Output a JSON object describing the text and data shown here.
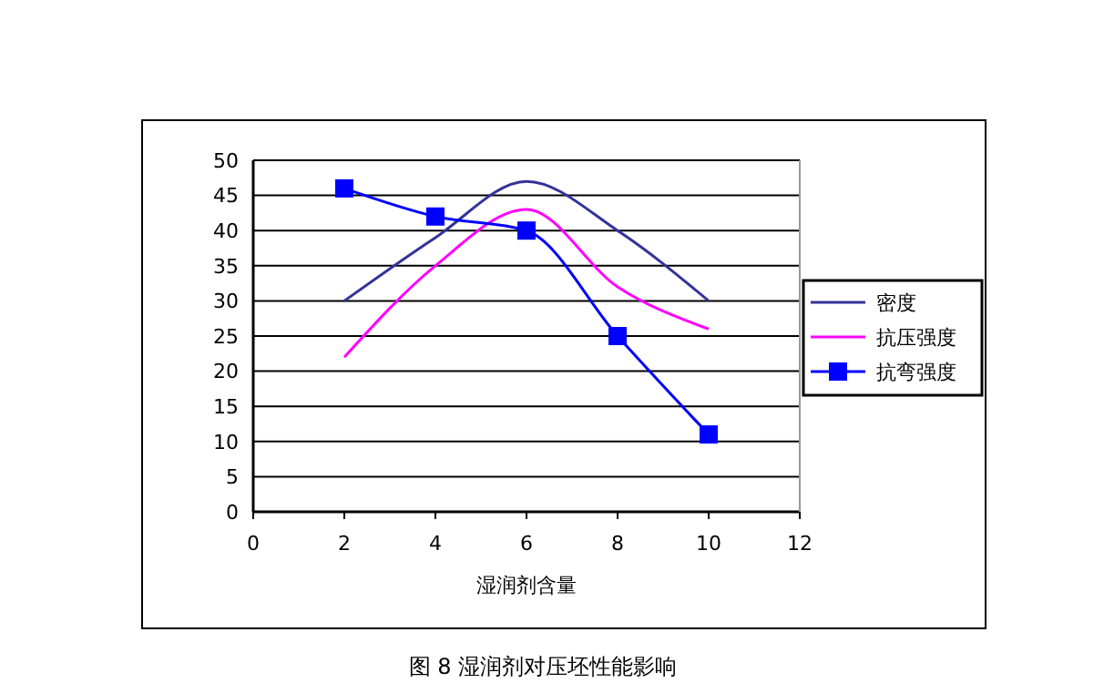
{
  "chart_data": {
    "type": "line",
    "xlabel": "湿润剂含量",
    "x": [
      2,
      4,
      6,
      8,
      10
    ],
    "series": [
      {
        "name": "密度",
        "color": "#333399",
        "values": [
          30,
          39,
          47,
          40,
          30
        ],
        "marker": "none"
      },
      {
        "name": "抗压强度",
        "color": "#ff00ff",
        "values": [
          22,
          35,
          43,
          32,
          26
        ],
        "marker": "none"
      },
      {
        "name": "抗弯强度",
        "color": "#0000ff",
        "values": [
          46,
          42,
          40,
          25,
          11
        ],
        "marker": "square"
      }
    ],
    "xlim": [
      0,
      12
    ],
    "xticks": [
      0,
      2,
      4,
      6,
      8,
      10,
      12
    ],
    "ylim": [
      0,
      50
    ],
    "yticks": [
      0,
      5,
      10,
      15,
      20,
      25,
      30,
      35,
      40,
      45,
      50
    ],
    "grid": "y",
    "legend": "right",
    "annotations": [
      "图 8  湿润剂对压坯性能影响"
    ]
  }
}
